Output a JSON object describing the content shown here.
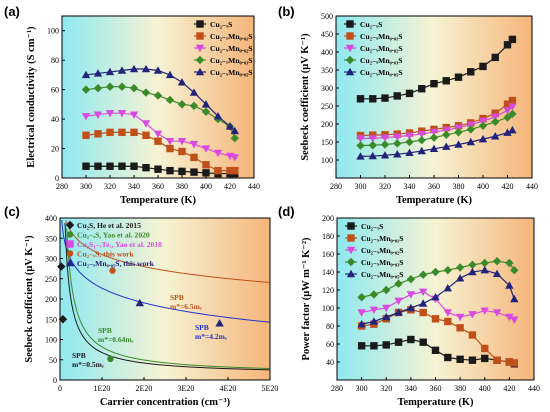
{
  "chart_data": [
    {
      "panel": "(a)",
      "type": "line",
      "xlabel": "Temperature (K)",
      "ylabel": "Electrical conductivity (S cm⁻¹)",
      "xlim": [
        280,
        440
      ],
      "ylim": [
        0,
        110
      ],
      "xticks": [
        "280",
        "300",
        "320",
        "340",
        "360",
        "380",
        "400",
        "420",
        "440"
      ],
      "yticks": [
        "0",
        "20",
        "40",
        "60",
        "80",
        "100"
      ],
      "background": "gradient cyan-to-orange",
      "legend_position": "top-right",
      "series": [
        {
          "name": "Cu₂₋ₓS",
          "color": "#1a1a1a",
          "marker": "square",
          "x": [
            300,
            310,
            320,
            330,
            340,
            350,
            360,
            370,
            380,
            390,
            400,
            410,
            420,
            424
          ],
          "y": [
            8,
            8,
            8,
            8,
            8,
            7,
            6,
            5,
            4.5,
            4,
            3.5,
            3,
            3,
            3
          ]
        },
        {
          "name": "Cu₂₋ₓMn₀.₀₁S",
          "color": "#c0501a",
          "marker": "square",
          "x": [
            300,
            310,
            320,
            330,
            340,
            350,
            360,
            370,
            380,
            390,
            400,
            410,
            420,
            424
          ],
          "y": [
            29,
            30,
            31,
            31,
            31,
            29,
            25,
            20,
            18,
            14,
            9,
            5,
            5,
            5
          ]
        },
        {
          "name": "Cu₂₋ₓMn₀.₀₂S",
          "color": "#d94be0",
          "marker": "triangle-down",
          "x": [
            300,
            310,
            320,
            330,
            340,
            350,
            360,
            370,
            380,
            390,
            400,
            410,
            420,
            424
          ],
          "y": [
            42,
            43,
            44,
            44,
            43,
            37,
            30,
            25,
            25,
            23,
            20,
            17,
            15,
            14
          ]
        },
        {
          "name": "Cu₂₋ₓMn₀.₀₃S",
          "color": "#3a8a2a",
          "marker": "diamond",
          "x": [
            300,
            310,
            320,
            330,
            340,
            350,
            360,
            370,
            380,
            390,
            400,
            410,
            420,
            424
          ],
          "y": [
            60,
            61,
            62,
            62,
            61,
            58,
            56,
            53,
            50,
            49,
            45,
            40,
            35,
            27
          ]
        },
        {
          "name": "Cu₂₋ₓMn₀.₀₅S",
          "color": "#22237a",
          "marker": "triangle-up",
          "x": [
            300,
            310,
            320,
            330,
            340,
            350,
            360,
            370,
            380,
            390,
            400,
            410,
            420,
            424
          ],
          "y": [
            70,
            71,
            72,
            73,
            74,
            74,
            73,
            70,
            65,
            58,
            50,
            42,
            35,
            32
          ]
        }
      ]
    },
    {
      "panel": "(b)",
      "type": "line",
      "xlabel": "Temperature (K)",
      "ylabel": "Seebeck coefficient (μV K⁻¹)",
      "xlim": [
        280,
        440
      ],
      "ylim": [
        50,
        500
      ],
      "xticks": [
        "280",
        "300",
        "320",
        "340",
        "360",
        "380",
        "400",
        "420",
        "440"
      ],
      "yticks": [
        "100",
        "150",
        "200",
        "250",
        "300",
        "350",
        "400",
        "450",
        "500"
      ],
      "legend_position": "top-left",
      "series": [
        {
          "name": "Cu₂₋ₓS",
          "color": "#1a1a1a",
          "marker": "square",
          "x": [
            300,
            310,
            320,
            330,
            340,
            350,
            360,
            370,
            380,
            390,
            400,
            410,
            420,
            424
          ],
          "y": [
            270,
            270,
            272,
            278,
            285,
            298,
            312,
            320,
            330,
            345,
            360,
            385,
            420,
            435
          ]
        },
        {
          "name": "Cu₂₋ₓMn₀.₀₁S",
          "color": "#c0501a",
          "marker": "square",
          "x": [
            300,
            310,
            320,
            330,
            340,
            350,
            360,
            370,
            380,
            390,
            400,
            410,
            420,
            424
          ],
          "y": [
            168,
            169,
            170,
            172,
            175,
            180,
            185,
            190,
            195,
            203,
            215,
            230,
            255,
            265
          ]
        },
        {
          "name": "Cu₂₋ₓMn₀.₀₂S",
          "color": "#d94be0",
          "marker": "triangle-down",
          "x": [
            300,
            310,
            320,
            330,
            340,
            350,
            360,
            370,
            380,
            390,
            400,
            410,
            420,
            424
          ],
          "y": [
            160,
            160,
            162,
            165,
            168,
            172,
            178,
            183,
            190,
            198,
            208,
            220,
            238,
            248
          ]
        },
        {
          "name": "Cu₂₋ₓMn₀.₀₃S",
          "color": "#3a8a2a",
          "marker": "diamond",
          "x": [
            300,
            310,
            320,
            330,
            340,
            350,
            360,
            370,
            380,
            390,
            400,
            410,
            420,
            424
          ],
          "y": [
            140,
            141,
            143,
            146,
            150,
            155,
            162,
            170,
            177,
            185,
            195,
            206,
            218,
            228
          ]
        },
        {
          "name": "Cu₂₋ₓMn₀.₀₅S",
          "color": "#22237a",
          "marker": "triangle-up",
          "x": [
            300,
            310,
            320,
            330,
            340,
            350,
            360,
            370,
            380,
            390,
            400,
            410,
            420,
            424
          ],
          "y": [
            110,
            111,
            113,
            116,
            120,
            125,
            131,
            137,
            143,
            150,
            158,
            166,
            176,
            183
          ]
        }
      ]
    },
    {
      "panel": "(c)",
      "type": "scatter",
      "xlabel": "Carrier concentration (cm⁻³)",
      "ylabel": "Seebeck coefficient (μV K⁻¹)",
      "xlim": [
        0,
        5
      ],
      "xunit": "1E20",
      "ylim": [
        0,
        400
      ],
      "xticks": [
        "0",
        "1E20",
        "2E20",
        "3E20",
        "4E20",
        "5E20"
      ],
      "yticks": [
        "0",
        "50",
        "100",
        "150",
        "200",
        "250",
        "300",
        "350",
        "400"
      ],
      "legend_position": "top-right",
      "legend": [
        {
          "name": "Cu₂S, He et al. 2015",
          "color": "#1a1a1a",
          "marker": "diamond"
        },
        {
          "name": "Cu₂₋ₓS, Yao et al. 2020",
          "color": "#3a8a2a",
          "marker": "circle"
        },
        {
          "name": "Cu₂S₁₋ₓTeₓ, Yao et al. 2018",
          "color": "#d94be0",
          "marker": "square"
        },
        {
          "name": "Cu₂₋ₓS, this work",
          "color": "#c0501a",
          "marker": "circle"
        },
        {
          "name": "Cu₂₋ₓMn₀.₀₅S, this work",
          "color": "#22237a",
          "marker": "triangle-up"
        }
      ],
      "points": [
        {
          "series": 0,
          "x": 0.03,
          "y": 280
        },
        {
          "series": 0,
          "x": 0.07,
          "y": 150
        },
        {
          "series": 1,
          "x": 1.2,
          "y": 52
        },
        {
          "series": 3,
          "x": 1.25,
          "y": 270
        },
        {
          "series": 4,
          "x": 1.9,
          "y": 190
        },
        {
          "series": 4,
          "x": 3.8,
          "y": 140
        }
      ],
      "curves": [
        {
          "label": "SPB m*=6.5mₑ",
          "color": "#c0501a"
        },
        {
          "label": "SPB m*=4.2mₑ",
          "color": "#2233cc"
        },
        {
          "label": "SPB m*=0.64mₑ",
          "color": "#3a8a2a"
        },
        {
          "label": "SPB m*=0.5mₑ",
          "color": "#1a1a1a"
        }
      ]
    },
    {
      "panel": "(d)",
      "type": "line",
      "xlabel": "Temperature (K)",
      "ylabel": "Power factor (μW m⁻¹ K⁻²)",
      "xlim": [
        280,
        440
      ],
      "ylim": [
        20,
        200
      ],
      "xticks": [
        "280",
        "300",
        "320",
        "340",
        "360",
        "380",
        "400",
        "420",
        "440"
      ],
      "yticks": [
        "40",
        "60",
        "80",
        "100",
        "120",
        "140",
        "160",
        "180",
        "200"
      ],
      "legend_position": "top-left",
      "series": [
        {
          "name": "Cu₂₋ₓS",
          "color": "#1a1a1a",
          "marker": "square",
          "x": [
            300,
            310,
            320,
            330,
            340,
            350,
            360,
            370,
            380,
            390,
            400,
            410,
            420,
            424
          ],
          "y": [
            58,
            58,
            59,
            62,
            65,
            62,
            53,
            45,
            43,
            42,
            44,
            42,
            40,
            38
          ]
        },
        {
          "name": "Cu₂₋ₓMn₀.₀₁S",
          "color": "#c0501a",
          "marker": "square",
          "x": [
            300,
            310,
            320,
            330,
            340,
            350,
            360,
            370,
            380,
            390,
            400,
            410,
            420,
            424
          ],
          "y": [
            80,
            82,
            88,
            95,
            98,
            95,
            88,
            85,
            78,
            70,
            55,
            42,
            40,
            39
          ]
        },
        {
          "name": "Cu₂₋ₓMn₀.₀₂S",
          "color": "#d94be0",
          "marker": "triangle-down",
          "x": [
            300,
            310,
            320,
            330,
            340,
            350,
            360,
            370,
            380,
            390,
            400,
            410,
            420,
            424
          ],
          "y": [
            95,
            98,
            100,
            108,
            115,
            118,
            110,
            95,
            90,
            93,
            97,
            95,
            90,
            87
          ]
        },
        {
          "name": "Cu₂₋ₓMn₀.₀₃S",
          "color": "#3a8a2a",
          "marker": "diamond",
          "x": [
            300,
            310,
            320,
            330,
            340,
            350,
            360,
            370,
            380,
            390,
            400,
            410,
            420,
            424
          ],
          "y": [
            112,
            115,
            120,
            127,
            132,
            137,
            140,
            142,
            145,
            148,
            150,
            152,
            150,
            142
          ]
        },
        {
          "name": "Cu₂₋ₓMn₀.₀₅S",
          "color": "#22237a",
          "marker": "triangle-up",
          "x": [
            300,
            310,
            320,
            330,
            340,
            350,
            360,
            370,
            380,
            390,
            400,
            410,
            420,
            424
          ],
          "y": [
            82,
            85,
            90,
            95,
            100,
            105,
            112,
            122,
            133,
            140,
            142,
            138,
            125,
            110
          ]
        }
      ]
    }
  ]
}
